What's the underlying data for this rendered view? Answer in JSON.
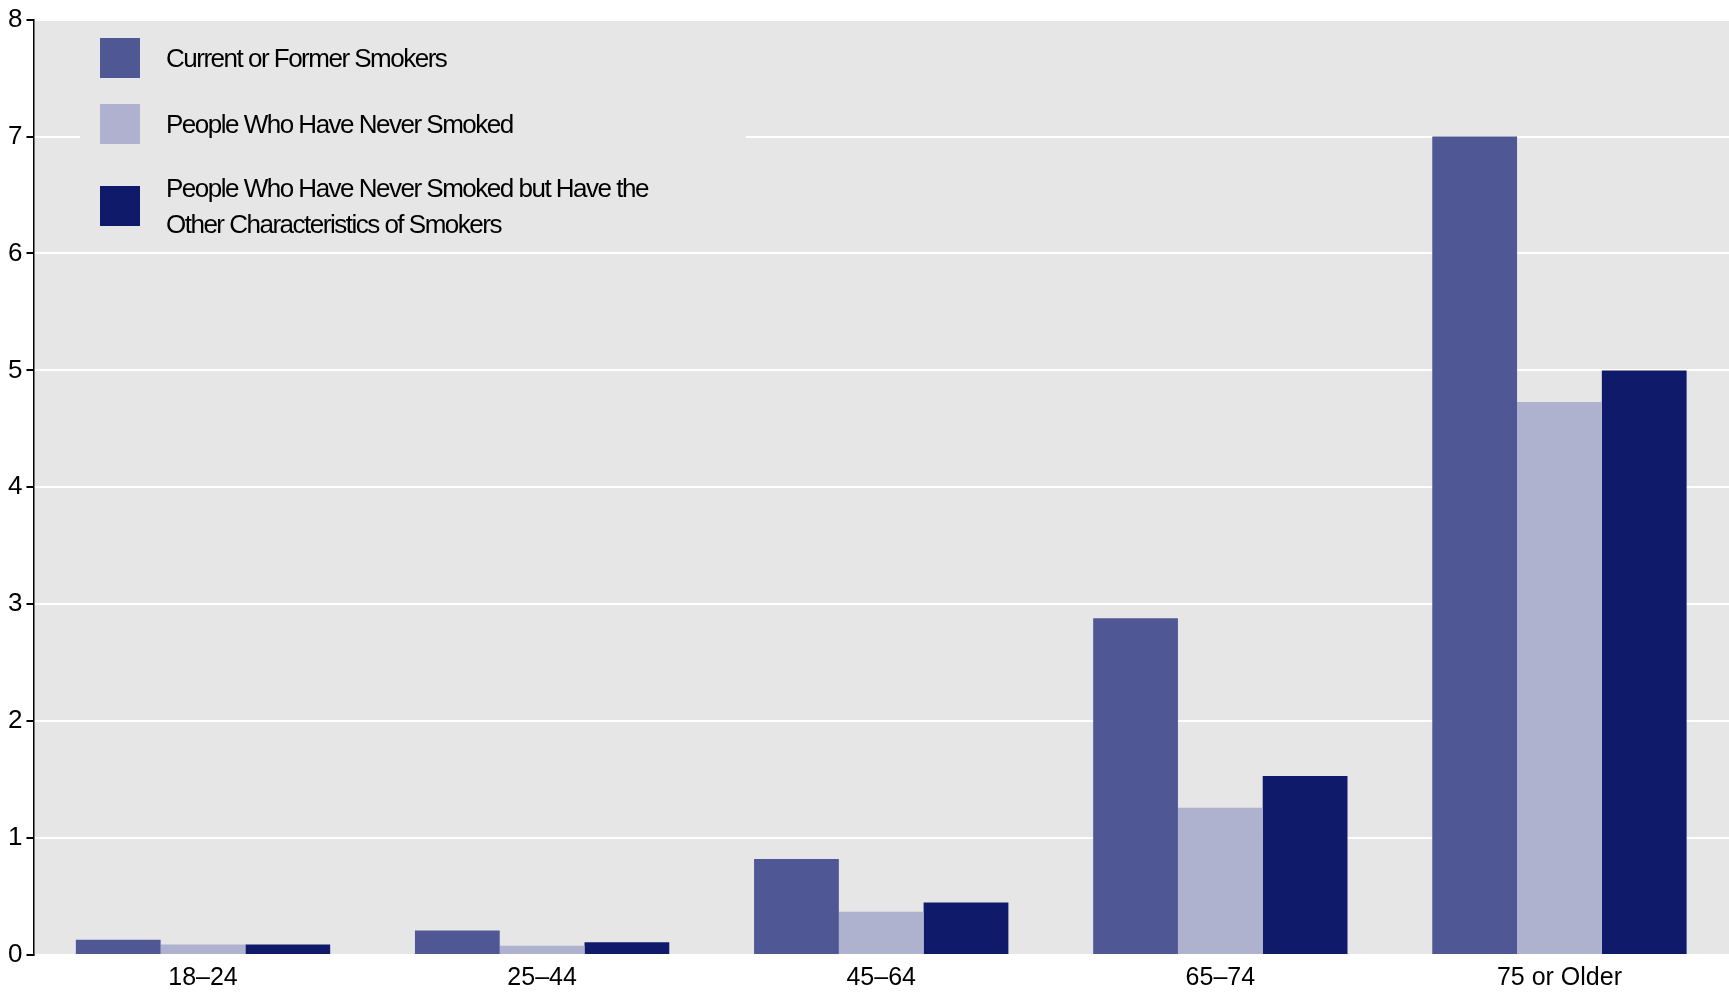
{
  "chart_data": {
    "type": "bar",
    "categories": [
      "18–24",
      "25–44",
      "45–64",
      "65–74",
      "75 or Older"
    ],
    "series": [
      {
        "name": "Current or Former Smokers",
        "color": "#4f5894",
        "values": [
          0.13,
          0.21,
          0.82,
          2.88,
          7.0
        ]
      },
      {
        "name": "People Who Have Never Smoked",
        "color": "#aeb2cf",
        "values": [
          0.09,
          0.08,
          0.37,
          1.26,
          4.73
        ]
      },
      {
        "name": "People Who Have Never Smoked but Have the Other Characteristics of Smokers",
        "color": "#0f1a6a",
        "values": [
          0.09,
          0.11,
          0.45,
          1.53,
          5.0
        ]
      }
    ],
    "ylim": [
      0,
      8
    ],
    "yticks": [
      0,
      1,
      2,
      3,
      4,
      5,
      6,
      7,
      8
    ],
    "grid": "y",
    "legend": "top left"
  }
}
